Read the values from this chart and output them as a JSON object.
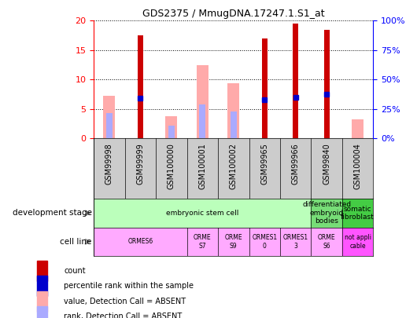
{
  "title": "GDS2375 / MmugDNA.17247.1.S1_at",
  "samples": [
    "GSM99998",
    "GSM99999",
    "GSM100000",
    "GSM100001",
    "GSM100002",
    "GSM99965",
    "GSM99966",
    "GSM99840",
    "GSM100004"
  ],
  "count": [
    null,
    17.5,
    null,
    null,
    null,
    17.0,
    19.5,
    18.5,
    null
  ],
  "percentile_rank": [
    null,
    6.8,
    null,
    null,
    null,
    6.5,
    7.0,
    7.5,
    null
  ],
  "value_absent": [
    7.2,
    null,
    3.8,
    12.5,
    9.4,
    null,
    null,
    null,
    3.2
  ],
  "rank_absent": [
    4.3,
    null,
    2.1,
    5.7,
    4.6,
    null,
    null,
    null,
    null
  ],
  "ylim_left": [
    0,
    20
  ],
  "ylim_right": [
    0,
    100
  ],
  "yticks_left": [
    0,
    5,
    10,
    15,
    20
  ],
  "yticks_right": [
    0,
    25,
    50,
    75,
    100
  ],
  "ytick_labels_right": [
    "0%",
    "25%",
    "50%",
    "75%",
    "100%"
  ],
  "color_count": "#cc0000",
  "color_percentile": "#0000cc",
  "color_value_absent": "#ffaaaa",
  "color_rank_absent": "#aaaaff",
  "dev_stage_blocks": [
    {
      "s": 0,
      "e": 7,
      "color": "#bbffbb",
      "text": "embryonic stem cell"
    },
    {
      "s": 7,
      "e": 8,
      "color": "#77dd77",
      "text": "differentiated\nembryoid\nbodies"
    },
    {
      "s": 8,
      "e": 9,
      "color": "#44cc44",
      "text": "somatic\nfibroblast"
    }
  ],
  "cell_line_blocks": [
    {
      "s": 0,
      "e": 3,
      "color": "#ffaaff",
      "text": "ORMES6"
    },
    {
      "s": 3,
      "e": 4,
      "color": "#ffaaff",
      "text": "ORME\nS7"
    },
    {
      "s": 4,
      "e": 5,
      "color": "#ffaaff",
      "text": "ORME\nS9"
    },
    {
      "s": 5,
      "e": 6,
      "color": "#ffaaff",
      "text": "ORMES1\n0"
    },
    {
      "s": 6,
      "e": 7,
      "color": "#ffaaff",
      "text": "ORMES1\n3"
    },
    {
      "s": 7,
      "e": 8,
      "color": "#ffaaff",
      "text": "ORME\nS6"
    },
    {
      "s": 8,
      "e": 9,
      "color": "#ff55ff",
      "text": "not appli\ncable"
    }
  ],
  "legend_items": [
    {
      "label": "count",
      "color": "#cc0000"
    },
    {
      "label": "percentile rank within the sample",
      "color": "#0000cc"
    },
    {
      "label": "value, Detection Call = ABSENT",
      "color": "#ffaaaa"
    },
    {
      "label": "rank, Detection Call = ABSENT",
      "color": "#aaaaff"
    }
  ]
}
